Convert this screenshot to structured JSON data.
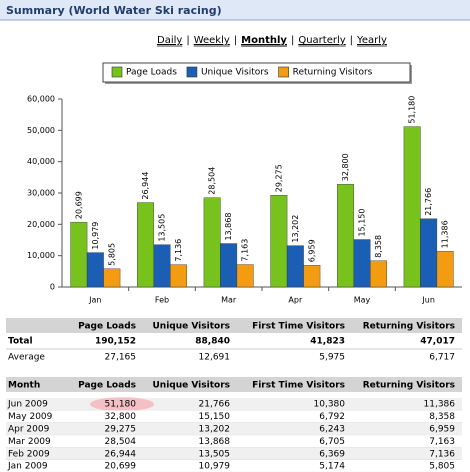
{
  "header": {
    "title": "Summary (World Water Ski racing)"
  },
  "nav": {
    "links": [
      "Daily",
      "Weekly",
      "Monthly",
      "Quarterly",
      "Yearly"
    ],
    "separator": "|",
    "active_index": 2
  },
  "chart_data": {
    "type": "bar",
    "categories": [
      "Jan",
      "Feb",
      "Mar",
      "Apr",
      "May",
      "Jun"
    ],
    "series": [
      {
        "name": "Page Loads",
        "color": "#77c21d",
        "values": [
          20699,
          26944,
          28504,
          29275,
          32800,
          51180
        ],
        "value_labels": [
          "20,699",
          "26,944",
          "28,504",
          "29,275",
          "32,800",
          "51,180"
        ]
      },
      {
        "name": "Unique Visitors",
        "color": "#1b5fb4",
        "values": [
          10979,
          13505,
          13868,
          13202,
          15150,
          21766
        ],
        "value_labels": [
          "10,979",
          "13,505",
          "13,868",
          "13,202",
          "15,150",
          "21,766"
        ]
      },
      {
        "name": "Returning Visitors",
        "color": "#f39c12",
        "values": [
          5805,
          7136,
          7163,
          6959,
          8358,
          11386
        ],
        "value_labels": [
          "5,805",
          "7,136",
          "7,163",
          "6,959",
          "8,358",
          "11,386"
        ]
      }
    ],
    "ylim": [
      0,
      60000
    ],
    "yticks": [
      0,
      {
        "value": 10000,
        "label": "10,000"
      },
      {
        "value": 20000,
        "label": "20,000"
      },
      {
        "value": 30000,
        "label": "30,000"
      },
      {
        "value": 40000,
        "label": "40,000"
      },
      {
        "value": 50000,
        "label": "50,000"
      },
      {
        "value": 60000,
        "label": "60,000"
      }
    ],
    "grid": false,
    "legend": "top"
  },
  "summary_table": {
    "columns": [
      "Page Loads",
      "Unique Visitors",
      "First Time Visitors",
      "Returning Visitors"
    ],
    "rows": [
      {
        "label": "Total",
        "cells": [
          "190,152",
          "88,840",
          "41,823",
          "47,017"
        ]
      },
      {
        "label": "Average",
        "cells": [
          "27,165",
          "12,691",
          "5,975",
          "6,717"
        ]
      }
    ]
  },
  "monthly_table": {
    "columns": [
      "Month",
      "Page Loads",
      "Unique Visitors",
      "First Time Visitors",
      "Returning Visitors"
    ],
    "rows": [
      [
        "Jun 2009",
        "51,180",
        "21,766",
        "10,380",
        "11,386"
      ],
      [
        "May 2009",
        "32,800",
        "15,150",
        "6,792",
        "8,358"
      ],
      [
        "Apr 2009",
        "29,275",
        "13,202",
        "6,243",
        "6,959"
      ],
      [
        "Mar 2009",
        "28,504",
        "13,868",
        "6,705",
        "7,163"
      ],
      [
        "Feb 2009",
        "26,944",
        "13,505",
        "6,369",
        "7,136"
      ],
      [
        "Jan 2009",
        "20,699",
        "10,979",
        "5,174",
        "5,805"
      ]
    ],
    "highlighted_cell": [
      0,
      1
    ]
  }
}
